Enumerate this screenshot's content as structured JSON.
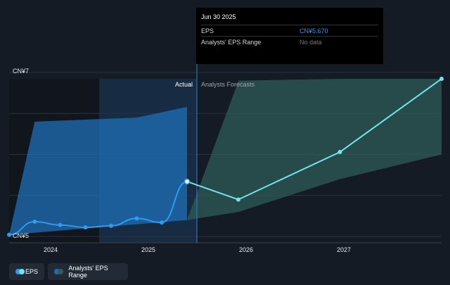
{
  "tooltip": {
    "title": "Jun 30 2025",
    "rows": [
      {
        "label": "EPS",
        "value": "CN¥5.670"
      },
      {
        "label": "Analysts' EPS Range",
        "value": "No data"
      }
    ]
  },
  "regions": {
    "actual": "Actual",
    "forecast": "Analysts Forecasts"
  },
  "legend": {
    "eps": "EPS",
    "range": "Analysts' EPS Range"
  },
  "colors": {
    "background": "#151b24",
    "eps_line": "#2f9bf0",
    "forecast_line": "#6fe6ea",
    "actual_band": "#1d6fb5",
    "forecast_band": "#2f5f5c",
    "highlight": "#2b6fb0"
  },
  "chart_data": {
    "type": "line",
    "y_ticks": [
      {
        "value": 7,
        "label": "CN¥7"
      },
      {
        "value": 5,
        "label": "CN¥5"
      }
    ],
    "ylim": [
      5,
      7
    ],
    "xlim": [
      "2023-09-30",
      "2027-12-31"
    ],
    "x_ticks": [
      {
        "value": "2024-01-01",
        "label": "2024"
      },
      {
        "value": "2025-01-01",
        "label": "2025"
      },
      {
        "value": "2026-01-01",
        "label": "2026"
      },
      {
        "value": "2027-01-01",
        "label": "2027"
      }
    ],
    "grid": true,
    "highlight_range": [
      "2024-07-01",
      "2025-06-30"
    ],
    "actual_until": "2025-06-30",
    "series": [
      {
        "name": "EPS",
        "kind": "actual",
        "points": [
          {
            "x": "2023-09-30",
            "y": 5.02
          },
          {
            "x": "2023-12-31",
            "y": 5.18
          },
          {
            "x": "2024-03-31",
            "y": 5.14
          },
          {
            "x": "2024-06-30",
            "y": 5.11
          },
          {
            "x": "2024-09-30",
            "y": 5.13
          },
          {
            "x": "2024-12-31",
            "y": 5.22
          },
          {
            "x": "2025-03-31",
            "y": 5.17
          },
          {
            "x": "2025-06-30",
            "y": 5.67
          }
        ]
      },
      {
        "name": "EPS",
        "kind": "forecast",
        "points": [
          {
            "x": "2025-06-30",
            "y": 5.67
          },
          {
            "x": "2025-12-31",
            "y": 5.45
          },
          {
            "x": "2026-12-31",
            "y": 6.03
          },
          {
            "x": "2027-12-31",
            "y": 6.96
          }
        ]
      }
    ],
    "ranges": [
      {
        "name": "Analysts' EPS Range",
        "kind": "actual",
        "upper": [
          {
            "x": "2023-09-30",
            "y": 5.02
          },
          {
            "x": "2023-12-31",
            "y": 6.4
          },
          {
            "x": "2024-12-31",
            "y": 6.45
          },
          {
            "x": "2025-06-30",
            "y": 6.58
          }
        ],
        "lower": [
          {
            "x": "2025-06-30",
            "y": 5.2
          },
          {
            "x": "2023-09-30",
            "y": 5.02
          }
        ]
      },
      {
        "name": "Analysts' EPS Range",
        "kind": "forecast",
        "upper": [
          {
            "x": "2025-06-30",
            "y": 5.2
          },
          {
            "x": "2026-01-01",
            "y": 6.9
          },
          {
            "x": "2027-01-01",
            "y": 7.8
          },
          {
            "x": "2027-12-31",
            "y": 8.6
          }
        ],
        "lower": [
          {
            "x": "2027-12-31",
            "y": 6.0
          },
          {
            "x": "2027-01-01",
            "y": 5.7
          },
          {
            "x": "2026-01-01",
            "y": 5.3
          },
          {
            "x": "2025-06-30",
            "y": 5.2
          }
        ]
      }
    ]
  }
}
